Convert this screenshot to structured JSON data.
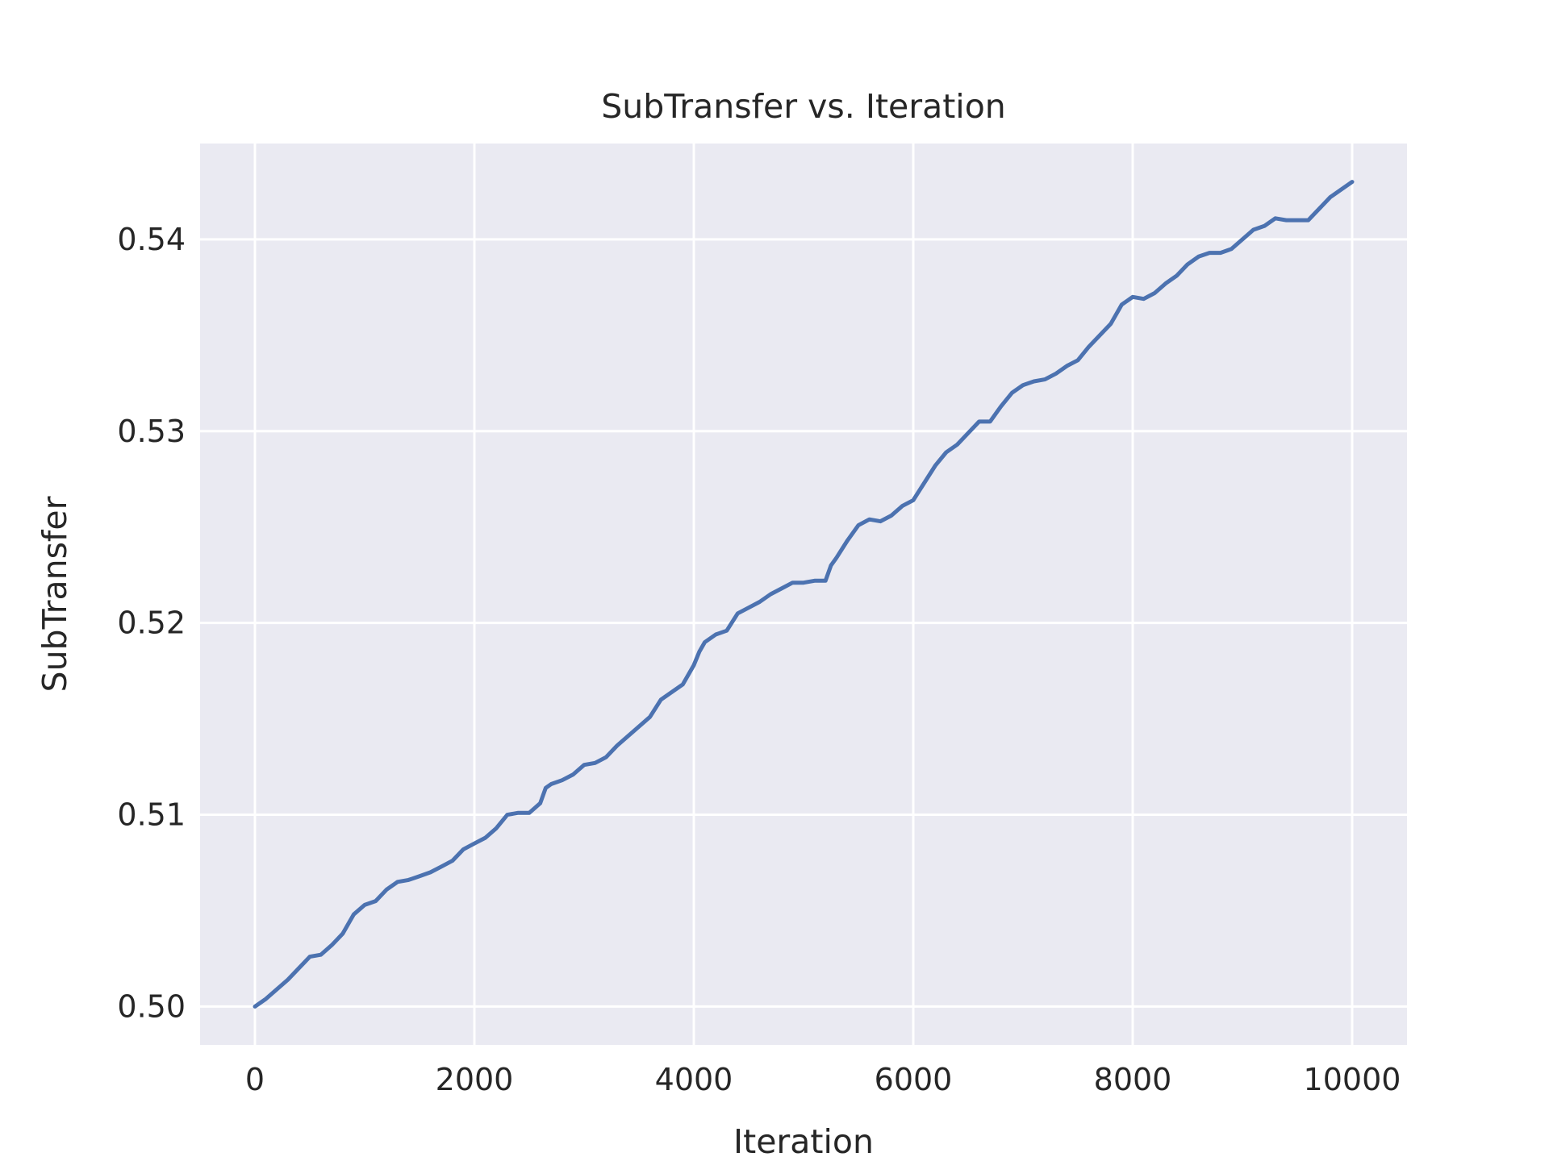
{
  "chart_data": {
    "type": "line",
    "title": "SubTransfer vs. Iteration",
    "xlabel": "Iteration",
    "ylabel": "SubTransfer",
    "xlim": [
      -500,
      10500
    ],
    "ylim": [
      0.498,
      0.545
    ],
    "xticks": [
      0,
      2000,
      4000,
      6000,
      8000,
      10000
    ],
    "xtick_labels": [
      "0",
      "2000",
      "4000",
      "6000",
      "8000",
      "10000"
    ],
    "yticks": [
      0.5,
      0.51,
      0.52,
      0.53,
      0.54
    ],
    "ytick_labels": [
      "0.50",
      "0.51",
      "0.52",
      "0.53",
      "0.54"
    ],
    "grid": true,
    "colors": {
      "background": "#eaeaf2",
      "grid": "#ffffff",
      "line": "#4c72b0"
    },
    "series": [
      {
        "x": [
          0,
          100,
          200,
          300,
          400,
          500,
          600,
          700,
          800,
          900,
          1000,
          1100,
          1200,
          1300,
          1400,
          1500,
          1600,
          1700,
          1800,
          1900,
          2000,
          2100,
          2200,
          2300,
          2400,
          2500,
          2600,
          2650,
          2700,
          2800,
          2900,
          3000,
          3100,
          3200,
          3300,
          3400,
          3500,
          3600,
          3700,
          3800,
          3900,
          4000,
          4050,
          4100,
          4200,
          4300,
          4400,
          4500,
          4600,
          4700,
          4800,
          4900,
          5000,
          5100,
          5200,
          5250,
          5300,
          5400,
          5500,
          5600,
          5700,
          5800,
          5900,
          6000,
          6100,
          6200,
          6300,
          6400,
          6500,
          6600,
          6700,
          6800,
          6900,
          7000,
          7100,
          7200,
          7300,
          7400,
          7500,
          7600,
          7700,
          7800,
          7900,
          8000,
          8100,
          8200,
          8300,
          8400,
          8500,
          8600,
          8700,
          8800,
          8900,
          9000,
          9100,
          9200,
          9300,
          9400,
          9500,
          9600,
          9700,
          9800,
          9900,
          10000
        ],
        "y": [
          0.5,
          0.5004,
          0.5009,
          0.5014,
          0.502,
          0.5026,
          0.5027,
          0.5032,
          0.5038,
          0.5048,
          0.5053,
          0.5055,
          0.5061,
          0.5065,
          0.5066,
          0.5068,
          0.507,
          0.5073,
          0.5076,
          0.5082,
          0.5085,
          0.5088,
          0.5093,
          0.51,
          0.5101,
          0.5101,
          0.5106,
          0.5114,
          0.5116,
          0.5118,
          0.5121,
          0.5126,
          0.5127,
          0.513,
          0.5136,
          0.5141,
          0.5146,
          0.5151,
          0.516,
          0.5164,
          0.5168,
          0.5178,
          0.5185,
          0.519,
          0.5194,
          0.5196,
          0.5205,
          0.5208,
          0.5211,
          0.5215,
          0.5218,
          0.5221,
          0.5221,
          0.5222,
          0.5222,
          0.523,
          0.5234,
          0.5243,
          0.5251,
          0.5254,
          0.5253,
          0.5256,
          0.5261,
          0.5264,
          0.5273,
          0.5282,
          0.5289,
          0.5293,
          0.5299,
          0.5305,
          0.5305,
          0.5313,
          0.532,
          0.5324,
          0.5326,
          0.5327,
          0.533,
          0.5334,
          0.5337,
          0.5344,
          0.535,
          0.5356,
          0.5366,
          0.537,
          0.5369,
          0.5372,
          0.5377,
          0.5381,
          0.5387,
          0.5391,
          0.5393,
          0.5393,
          0.5395,
          0.54,
          0.5405,
          0.5407,
          0.5411,
          0.541,
          0.541,
          0.541,
          0.5416,
          0.5422,
          0.5426,
          0.543
        ]
      }
    ]
  }
}
